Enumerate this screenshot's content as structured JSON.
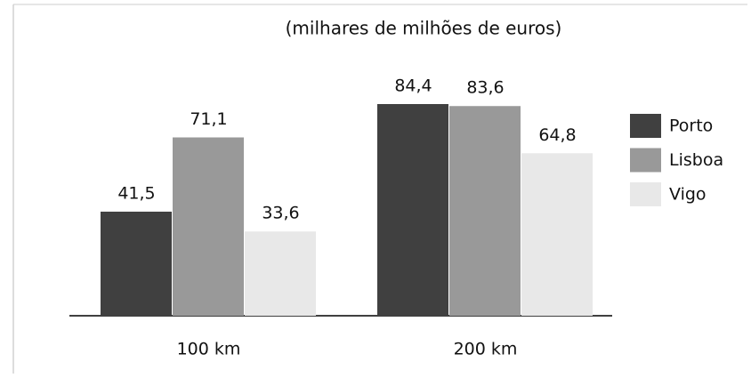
{
  "chart_data": {
    "type": "bar",
    "subtitle": "(milhares de milhões de euros)",
    "categories": [
      "100 km",
      "200 km"
    ],
    "series": [
      {
        "name": "Porto",
        "color": "#404040",
        "values": [
          41.5,
          84.4
        ],
        "value_labels": [
          "41,5",
          "84,4"
        ]
      },
      {
        "name": "Lisboa",
        "color": "#999999",
        "values": [
          71.1,
          83.6
        ],
        "value_labels": [
          "71,1",
          "83,6"
        ]
      },
      {
        "name": "Vigo",
        "color": "#e8e8e8",
        "values": [
          33.6,
          64.8
        ],
        "value_labels": [
          "33,6",
          "64,8"
        ]
      }
    ],
    "legend": "right"
  }
}
